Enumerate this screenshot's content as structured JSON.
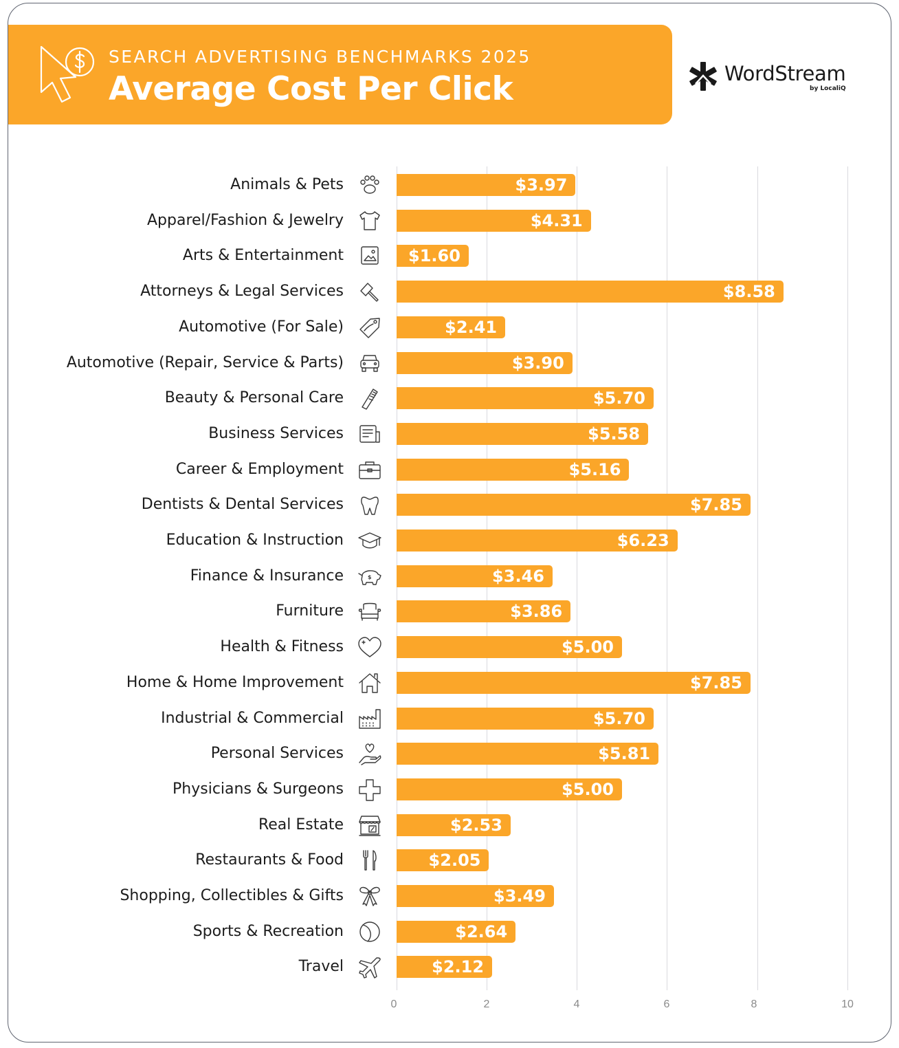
{
  "header": {
    "subtitle": "SEARCH ADVERTISING BENCHMARKS 2025",
    "title": "Average Cost Per Click",
    "icon": "cursor-dollar-icon"
  },
  "brand": {
    "name": "WordStream",
    "byline": "by LocaliQ",
    "icon": "wordstream-logo-icon"
  },
  "colors": {
    "accent": "#fba629",
    "text": "#1c1c1c",
    "gridline": "#d9d9de",
    "border": "#5f6470"
  },
  "axis": {
    "ticks": [
      "0",
      "2",
      "4",
      "6",
      "8",
      "10"
    ]
  },
  "rows": [
    {
      "label": "Animals & Pets",
      "value": 3.97,
      "display": "$3.97",
      "icon": "paw-icon"
    },
    {
      "label": "Apparel/Fashion & Jewelry",
      "value": 4.31,
      "display": "$4.31",
      "icon": "tshirt-icon"
    },
    {
      "label": "Arts & Entertainment",
      "value": 1.6,
      "display": "$1.60",
      "icon": "picture-icon"
    },
    {
      "label": "Attorneys & Legal Services",
      "value": 8.58,
      "display": "$8.58",
      "icon": "gavel-icon"
    },
    {
      "label": "Automotive (For Sale)",
      "value": 2.41,
      "display": "$2.41",
      "icon": "price-tag-icon"
    },
    {
      "label": "Automotive (Repair, Service & Parts)",
      "value": 3.9,
      "display": "$3.90",
      "icon": "car-icon"
    },
    {
      "label": "Beauty & Personal Care",
      "value": 5.7,
      "display": "$5.70",
      "icon": "comb-icon"
    },
    {
      "label": "Business Services",
      "value": 5.58,
      "display": "$5.58",
      "icon": "document-icon"
    },
    {
      "label": "Career & Employment",
      "value": 5.16,
      "display": "$5.16",
      "icon": "briefcase-icon"
    },
    {
      "label": "Dentists & Dental Services",
      "value": 7.85,
      "display": "$7.85",
      "icon": "tooth-icon"
    },
    {
      "label": "Education & Instruction",
      "value": 6.23,
      "display": "$6.23",
      "icon": "graduation-cap-icon"
    },
    {
      "label": "Finance & Insurance",
      "value": 3.46,
      "display": "$3.46",
      "icon": "piggy-bank-icon"
    },
    {
      "label": "Furniture",
      "value": 3.86,
      "display": "$3.86",
      "icon": "armchair-icon"
    },
    {
      "label": "Health & Fitness",
      "value": 5.0,
      "display": "$5.00",
      "icon": "heart-icon"
    },
    {
      "label": "Home & Home Improvement",
      "value": 7.85,
      "display": "$7.85",
      "icon": "house-icon"
    },
    {
      "label": "Industrial & Commercial",
      "value": 5.7,
      "display": "$5.70",
      "icon": "factory-icon"
    },
    {
      "label": "Personal Services",
      "value": 5.81,
      "display": "$5.81",
      "icon": "hand-heart-icon"
    },
    {
      "label": "Physicians & Surgeons",
      "value": 5.0,
      "display": "$5.00",
      "icon": "medical-cross-icon"
    },
    {
      "label": "Real Estate",
      "value": 2.53,
      "display": "$2.53",
      "icon": "storefront-icon"
    },
    {
      "label": "Restaurants & Food",
      "value": 2.05,
      "display": "$2.05",
      "icon": "fork-knife-icon"
    },
    {
      "label": "Shopping, Collectibles & Gifts",
      "value": 3.49,
      "display": "$3.49",
      "icon": "gift-bow-icon"
    },
    {
      "label": "Sports & Recreation",
      "value": 2.64,
      "display": "$2.64",
      "icon": "ball-icon"
    },
    {
      "label": "Travel",
      "value": 2.12,
      "display": "$2.12",
      "icon": "airplane-icon"
    }
  ],
  "chart_data": {
    "type": "bar",
    "orientation": "horizontal",
    "title": "Average Cost Per Click",
    "subtitle": "SEARCH ADVERTISING BENCHMARKS 2025",
    "xlabel": "",
    "ylabel": "",
    "xlim": [
      0,
      10
    ],
    "x_ticks": [
      0,
      2,
      4,
      6,
      8,
      10
    ],
    "grid": true,
    "legend": null,
    "value_format": "$0.00",
    "categories": [
      "Animals & Pets",
      "Apparel/Fashion & Jewelry",
      "Arts & Entertainment",
      "Attorneys & Legal Services",
      "Automotive (For Sale)",
      "Automotive (Repair, Service & Parts)",
      "Beauty & Personal Care",
      "Business Services",
      "Career & Employment",
      "Dentists & Dental Services",
      "Education & Instruction",
      "Finance & Insurance",
      "Furniture",
      "Health & Fitness",
      "Home & Home Improvement",
      "Industrial & Commercial",
      "Personal Services",
      "Physicians & Surgeons",
      "Real Estate",
      "Restaurants & Food",
      "Shopping, Collectibles & Gifts",
      "Sports & Recreation",
      "Travel"
    ],
    "values": [
      3.97,
      4.31,
      1.6,
      8.58,
      2.41,
      3.9,
      5.7,
      5.58,
      5.16,
      7.85,
      6.23,
      3.46,
      3.86,
      5.0,
      7.85,
      5.7,
      5.81,
      5.0,
      2.53,
      2.05,
      3.49,
      2.64,
      2.12
    ],
    "bar_color": "#fba629",
    "source_brand": "WordStream by LocaliQ"
  }
}
